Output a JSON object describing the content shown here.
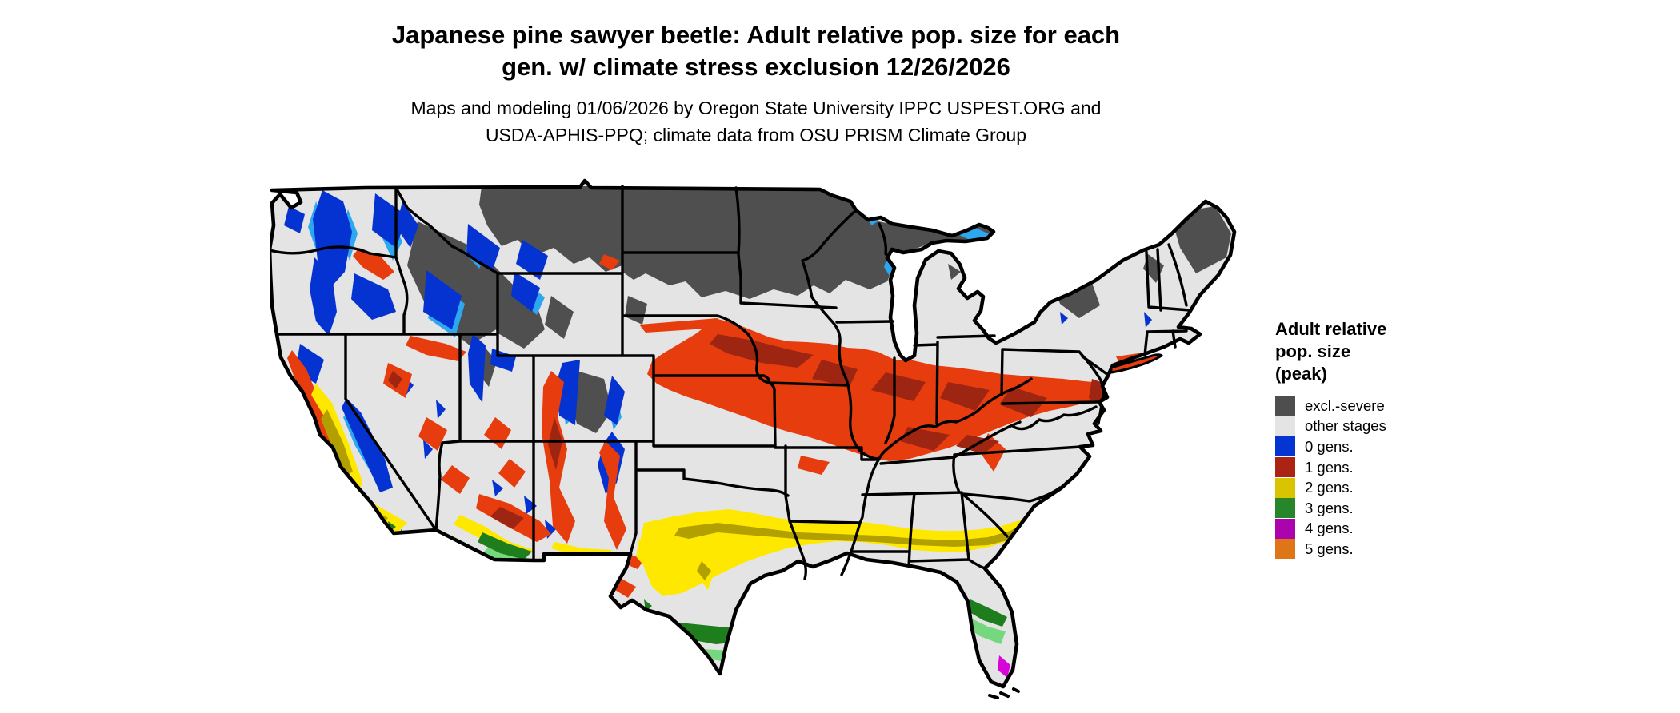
{
  "title": {
    "line1": "Japanese pine sawyer beetle: Adult relative pop. size for each",
    "line2": "gen. w/ climate stress exclusion 12/26/2026"
  },
  "subtitle": {
    "line1": "Maps and modeling 01/06/2026 by Oregon State University IPPC USPEST.ORG and",
    "line2": "USDA-APHIS-PPQ; climate data from OSU PRISM Climate Group"
  },
  "legend": {
    "title_lines": [
      "Adult relative",
      "pop. size",
      "(peak)"
    ],
    "items": [
      {
        "label": "excl.-severe",
        "color": "#4e4e4e"
      },
      {
        "label": "other stages",
        "color": "#e4e4e4"
      },
      {
        "label": "0 gens.",
        "color": "#0434d2"
      },
      {
        "label": "1 gens.",
        "color": "#ab2413"
      },
      {
        "label": "2 gens.",
        "color": "#d8c400"
      },
      {
        "label": "3 gens.",
        "color": "#27862a"
      },
      {
        "label": "4 gens.",
        "color": "#ac04ac"
      },
      {
        "label": "5 gens.",
        "color": "#de7517"
      }
    ]
  },
  "map": {
    "background": "#ffffff",
    "land_fill": "#e4e4e4",
    "border_color": "#000000",
    "class_colors": {
      "excl": "#4f4f4f",
      "gen0": "#0533d1",
      "gen0_light": "#2ea7f1",
      "gen1": "#e73c0e",
      "gen1_dark": "#9e2512",
      "gen2": "#ffe800",
      "gen2_dark": "#b2a000",
      "gen3": "#1e7e1e",
      "gen3_light": "#76d87e",
      "gen4": "#d904d9"
    }
  }
}
